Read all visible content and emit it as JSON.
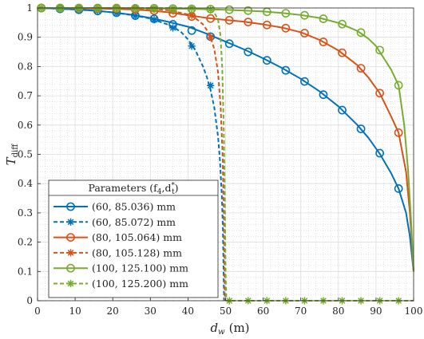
{
  "chart_data": {
    "type": "line",
    "xlabel": "d",
    "xlabel_sub": "w",
    "xlabel_unit": "(m)",
    "ylabel": "T",
    "ylabel_sub": "diff",
    "xlim": [
      0,
      100
    ],
    "ylim": [
      0,
      1
    ],
    "xticks": [
      0,
      10,
      20,
      30,
      40,
      50,
      60,
      70,
      80,
      90,
      100
    ],
    "yticks": [
      0,
      0.1,
      0.2,
      0.3,
      0.4,
      0.5,
      0.6,
      0.7,
      0.8,
      0.9,
      1
    ],
    "grid": true,
    "minor_grid": true,
    "legend": {
      "placement": "bottom-left",
      "title": "Parameters (f",
      "title_sub1": "4",
      "title_mid": ",d",
      "title_sup": "*",
      "title_sub2": "t",
      "title_end": ")"
    },
    "series": [
      {
        "name": "(60, 85.036) mm",
        "color": "#0072BD",
        "style": "solid",
        "marker": "circle",
        "x": [
          1,
          6,
          11,
          16,
          21,
          26,
          31,
          36,
          41,
          46,
          51,
          56,
          61,
          66,
          71,
          76,
          81,
          86,
          91,
          96
        ],
        "y": [
          1.0,
          0.997,
          0.994,
          0.99,
          0.984,
          0.974,
          0.963,
          0.944,
          0.923,
          0.902,
          0.878,
          0.85,
          0.821,
          0.787,
          0.749,
          0.704,
          0.651,
          0.587,
          0.504,
          0.383
        ],
        "curve_x": [
          0,
          5,
          10,
          15,
          20,
          25,
          30,
          35,
          40,
          45,
          50,
          55,
          60,
          65,
          70,
          75,
          80,
          85,
          88,
          91,
          94,
          96,
          98,
          99,
          99.5,
          100
        ],
        "curve_y": [
          1.0,
          0.998,
          0.995,
          0.991,
          0.985,
          0.977,
          0.966,
          0.952,
          0.936,
          0.912,
          0.885,
          0.858,
          0.828,
          0.795,
          0.758,
          0.715,
          0.664,
          0.601,
          0.556,
          0.502,
          0.436,
          0.383,
          0.3,
          0.22,
          0.16,
          0.1
        ]
      },
      {
        "name": "(60, 85.072) mm",
        "color": "#0072BD",
        "style": "dashed",
        "marker": "star",
        "x": [
          1,
          6,
          11,
          16,
          21,
          26,
          31,
          36,
          41,
          46
        ],
        "y": [
          1.0,
          0.998,
          0.994,
          0.99,
          0.983,
          0.973,
          0.96,
          0.932,
          0.87,
          0.735
        ],
        "curve_x": [
          0,
          5,
          10,
          15,
          20,
          25,
          30,
          35,
          38,
          40,
          42,
          44,
          45,
          46,
          47,
          48,
          48.5,
          49,
          49.3,
          49.6
        ],
        "curve_y": [
          1.0,
          0.998,
          0.995,
          0.991,
          0.985,
          0.976,
          0.964,
          0.942,
          0.92,
          0.893,
          0.855,
          0.8,
          0.765,
          0.72,
          0.66,
          0.56,
          0.48,
          0.36,
          0.24,
          0.0
        ]
      },
      {
        "name": "(80, 105.064) mm",
        "color": "#D95319",
        "style": "solid",
        "marker": "circle",
        "x": [
          1,
          6,
          11,
          16,
          21,
          26,
          31,
          36,
          41,
          46,
          51,
          56,
          61,
          66,
          71,
          76,
          81,
          86,
          91,
          96
        ],
        "y": [
          1.0,
          1.0,
          0.999,
          0.998,
          0.997,
          0.995,
          0.991,
          0.982,
          0.971,
          0.964,
          0.958,
          0.952,
          0.942,
          0.931,
          0.914,
          0.884,
          0.847,
          0.794,
          0.709,
          0.574
        ],
        "curve_x": [
          0,
          5,
          10,
          15,
          20,
          25,
          30,
          35,
          40,
          45,
          50,
          55,
          60,
          65,
          70,
          75,
          80,
          85,
          88,
          91,
          94,
          96,
          98,
          99,
          100
        ],
        "curve_y": [
          1.0,
          1.0,
          0.999,
          0.998,
          0.997,
          0.995,
          0.991,
          0.985,
          0.975,
          0.966,
          0.959,
          0.953,
          0.944,
          0.933,
          0.917,
          0.891,
          0.855,
          0.805,
          0.762,
          0.709,
          0.63,
          0.574,
          0.44,
          0.3,
          0.1
        ]
      },
      {
        "name": "(80, 105.128) mm",
        "color": "#D95319",
        "style": "dashed",
        "marker": "star",
        "x": [
          1,
          6,
          11,
          16,
          21,
          26,
          31,
          36,
          41,
          46
        ],
        "y": [
          1.0,
          1.0,
          1.0,
          1.0,
          0.999,
          0.998,
          0.996,
          0.99,
          0.975,
          0.9
        ],
        "curve_x": [
          0,
          10,
          20,
          30,
          35,
          40,
          42,
          44,
          45,
          46,
          47,
          48,
          48.7,
          49.2,
          49.5,
          49.8
        ],
        "curve_y": [
          1.0,
          1.0,
          0.999,
          0.997,
          0.992,
          0.978,
          0.965,
          0.944,
          0.925,
          0.9,
          0.86,
          0.78,
          0.66,
          0.5,
          0.32,
          0.0
        ]
      },
      {
        "name": "(100, 125.100) mm",
        "color": "#77AC30",
        "style": "solid",
        "marker": "circle",
        "x": [
          1,
          6,
          11,
          16,
          21,
          26,
          31,
          36,
          41,
          46,
          51,
          56,
          61,
          66,
          71,
          76,
          81,
          86,
          91,
          96
        ],
        "y": [
          1.0,
          1.0,
          1.0,
          1.0,
          1.0,
          0.999,
          0.999,
          0.998,
          0.997,
          0.996,
          0.994,
          0.991,
          0.987,
          0.982,
          0.975,
          0.963,
          0.945,
          0.916,
          0.856,
          0.736
        ],
        "curve_x": [
          0,
          10,
          20,
          30,
          40,
          50,
          55,
          60,
          65,
          70,
          75,
          80,
          85,
          88,
          90,
          92,
          94,
          96,
          97.5,
          98.5,
          99.3,
          100
        ],
        "curve_y": [
          1.0,
          1.0,
          1.0,
          0.999,
          0.997,
          0.994,
          0.991,
          0.988,
          0.983,
          0.976,
          0.966,
          0.949,
          0.922,
          0.895,
          0.87,
          0.83,
          0.79,
          0.736,
          0.6,
          0.45,
          0.28,
          0.1
        ]
      },
      {
        "name": "(100, 125.200) mm",
        "color": "#77AC30",
        "style": "dashed",
        "marker": "star",
        "x": [
          1,
          6,
          11,
          16,
          21,
          26,
          31,
          36,
          41,
          46,
          51,
          56,
          61,
          66,
          71,
          76,
          81,
          86,
          91,
          96
        ],
        "y": [
          1.0,
          1.0,
          1.0,
          1.0,
          1.0,
          1.0,
          1.0,
          0.999,
          0.999,
          0.995,
          0,
          0,
          0,
          0,
          0,
          0,
          0,
          0,
          0,
          0
        ],
        "curve_x": [
          0,
          10,
          20,
          30,
          40,
          44,
          46,
          47,
          48,
          48.6,
          49.1,
          49.5,
          49.8,
          50,
          50.2,
          100
        ],
        "curve_y": [
          1.0,
          1.0,
          1.0,
          1.0,
          0.999,
          0.997,
          0.993,
          0.985,
          0.96,
          0.91,
          0.8,
          0.6,
          0.35,
          0.1,
          0.0,
          0.0
        ]
      }
    ]
  }
}
